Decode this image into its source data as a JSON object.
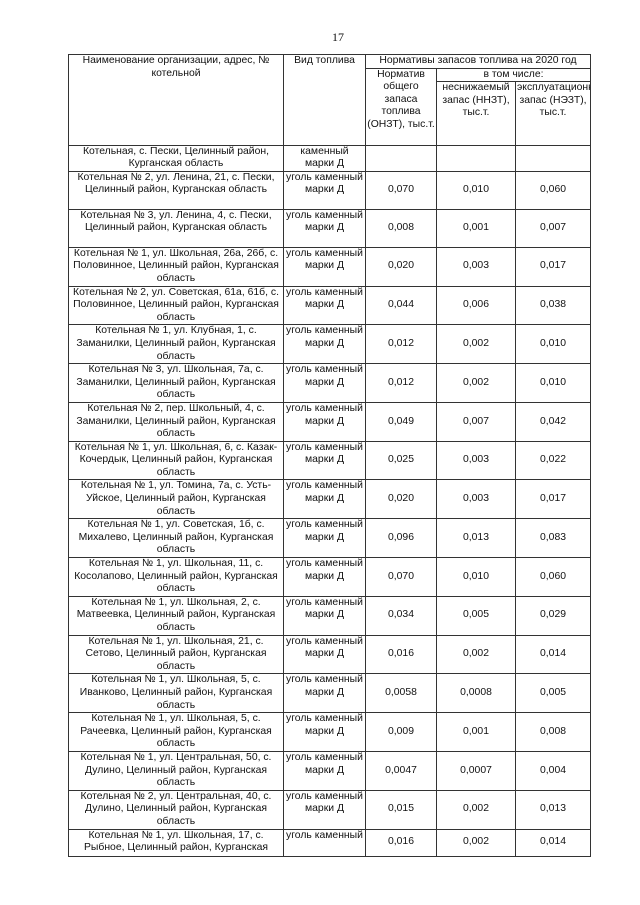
{
  "page_number": "17",
  "header": {
    "name_col": "Наименование организации, адрес, № котельной",
    "fuel_col": "Вид топлива",
    "norms_group": "Нормативы запасов топлива на 2020 год",
    "total_col": "Норматив общего запаса топлива (ОНЗТ), тыс.т.",
    "including": "в том числе:",
    "nnzt_col": "неснижаемый запас (ННЗТ), тыс.т.",
    "nezt_col": "эксплуатационный запас (НЭЗТ), тыс.т."
  },
  "rows": [
    {
      "name": "Котельная, с. Пески, Целинный район, Курганская область",
      "fuel": "каменный марки Д",
      "total": "",
      "nnzt": "",
      "nezt": ""
    },
    {
      "name": "Котельная № 2, ул. Ленина, 21, с. Пески, Целинный район, Курганская область",
      "fuel": "уголь каменный марки Д",
      "total": "0,070",
      "nnzt": "0,010",
      "nezt": "0,060"
    },
    {
      "name": "Котельная № 3, ул. Ленина, 4, с. Пески, Целинный район, Курганская область",
      "fuel": "уголь каменный марки Д",
      "total": "0,008",
      "nnzt": "0,001",
      "nezt": "0,007"
    },
    {
      "name": "Котельная № 1, ул. Школьная, 26а, 26б, с. Половинное, Целинный район, Курганская область",
      "fuel": "уголь каменный марки Д",
      "total": "0,020",
      "nnzt": "0,003",
      "nezt": "0,017"
    },
    {
      "name": "Котельная № 2, ул. Советская, 61а, 61б, с. Половинное, Целинный район, Курганская область",
      "fuel": "уголь каменный марки Д",
      "total": "0,044",
      "nnzt": "0,006",
      "nezt": "0,038"
    },
    {
      "name": "Котельная № 1, ул. Клубная, 1, с. Заманилки, Целинный район, Курганская область",
      "fuel": "уголь каменный марки Д",
      "total": "0,012",
      "nnzt": "0,002",
      "nezt": "0,010"
    },
    {
      "name": "Котельная № 3, ул. Школьная, 7а, с. Заманилки, Целинный район, Курганская область",
      "fuel": "уголь каменный марки Д",
      "total": "0,012",
      "nnzt": "0,002",
      "nezt": "0,010"
    },
    {
      "name": "Котельная № 2, пер. Школьный, 4, с. Заманилки, Целинный район, Курганская область",
      "fuel": "уголь каменный марки Д",
      "total": "0,049",
      "nnzt": "0,007",
      "nezt": "0,042"
    },
    {
      "name": "Котельная № 1, ул. Школьная, 6, с. Казак-Кочердык, Целинный район, Курганская область",
      "fuel": "уголь каменный марки Д",
      "total": "0,025",
      "nnzt": "0,003",
      "nezt": "0,022"
    },
    {
      "name": "Котельная № 1, ул. Томина, 7а, с. Усть-Уйское, Целинный район, Курганская область",
      "fuel": "уголь каменный марки Д",
      "total": "0,020",
      "nnzt": "0,003",
      "nezt": "0,017"
    },
    {
      "name": "Котельная № 1, ул. Советская, 1б, с. Михалево, Целинный район, Курганская область",
      "fuel": "уголь каменный марки Д",
      "total": "0,096",
      "nnzt": "0,013",
      "nezt": "0,083"
    },
    {
      "name": "Котельная № 1, ул. Школьная, 11, с. Косолапово, Целинный район, Курганская область",
      "fuel": "уголь каменный марки Д",
      "total": "0,070",
      "nnzt": "0,010",
      "nezt": "0,060"
    },
    {
      "name": "Котельная № 1, ул. Школьная, 2, с. Матвеевка, Целинный район, Курганская область",
      "fuel": "уголь каменный марки Д",
      "total": "0,034",
      "nnzt": "0,005",
      "nezt": "0,029"
    },
    {
      "name": "Котельная № 1, ул. Школьная, 21, с. Сетово, Целинный район, Курганская область",
      "fuel": "уголь каменный марки Д",
      "total": "0,016",
      "nnzt": "0,002",
      "nezt": "0,014"
    },
    {
      "name": "Котельная № 1, ул. Школьная, 5, с. Иванково, Целинный район, Курганская область",
      "fuel": "уголь каменный марки Д",
      "total": "0,0058",
      "nnzt": "0,0008",
      "nezt": "0,005"
    },
    {
      "name": "Котельная № 1, ул. Школьная, 5, с. Рачеевка, Целинный район, Курганская область",
      "fuel": "уголь каменный марки Д",
      "total": "0,009",
      "nnzt": "0,001",
      "nezt": "0,008"
    },
    {
      "name": "Котельная № 1, ул. Центральная, 50, с. Дулино, Целинный район, Курганская область",
      "fuel": "уголь каменный марки Д",
      "total": "0,0047",
      "nnzt": "0,0007",
      "nezt": "0,004"
    },
    {
      "name": "Котельная № 2, ул. Центральная, 40, с. Дулино, Целинный район, Курганская область",
      "fuel": "уголь каменный марки Д",
      "total": "0,015",
      "nnzt": "0,002",
      "nezt": "0,013"
    },
    {
      "name": "Котельная № 1, ул. Школьная, 17, с. Рыбное, Целинный район, Курганская",
      "fuel": "уголь каменный",
      "total": "0,016",
      "nnzt": "0,002",
      "nezt": "0,014"
    }
  ]
}
